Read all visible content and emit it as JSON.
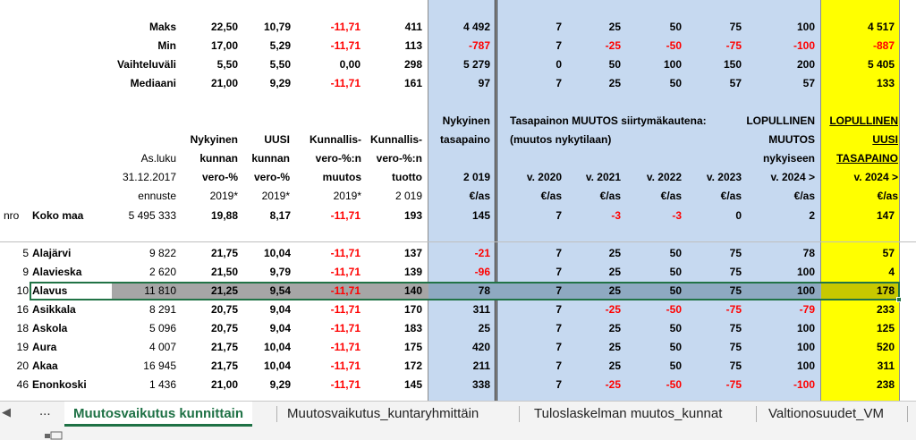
{
  "stats": [
    {
      "label": "Maks",
      "c1": "22,50",
      "c2": "10,79",
      "c3": "-11,71",
      "c4": "411",
      "c5": "4 492",
      "v2020": "7",
      "v2021": "25",
      "v2022": "50",
      "v2023": "75",
      "v2024": "100",
      "fin": "4 517"
    },
    {
      "label": "Min",
      "c1": "17,00",
      "c2": "5,29",
      "c3": "-11,71",
      "c4": "113",
      "c5": "-787",
      "v2020": "7",
      "v2021": "-25",
      "v2022": "-50",
      "v2023": "-75",
      "v2024": "-100",
      "fin": "-887"
    },
    {
      "label": "Vaihteluväli",
      "c1": "5,50",
      "c2": "5,50",
      "c3": "0,00",
      "c4": "298",
      "c5": "5 279",
      "v2020": "0",
      "v2021": "50",
      "v2022": "100",
      "v2023": "150",
      "v2024": "200",
      "fin": "5 405"
    },
    {
      "label": "Mediaani",
      "c1": "21,00",
      "c2": "9,29",
      "c3": "-11,71",
      "c4": "161",
      "c5": "97",
      "v2020": "7",
      "v2021": "25",
      "v2022": "50",
      "v2023": "57",
      "v2024": "57",
      "fin": "133"
    }
  ],
  "headers": {
    "nykyinen_tasapaino": [
      "Nykyinen",
      "tasapaino",
      "2 019",
      "€/as"
    ],
    "tasapainon_muutos": "Tasapainon MUUTOS siirtymäkautena:",
    "muutos_nykytilaan": "(muutos nykytilaan)",
    "lopullinen_muutos": [
      "LOPULLINEN",
      "MUUTOS",
      "nykyiseen"
    ],
    "lopullinen_uusi": [
      "LOPULLINEN",
      "UUSI",
      "TASAPAINO",
      "v. 2024 >",
      "€/as"
    ],
    "asluku": [
      "As.luku",
      "31.12.2017",
      "ennuste"
    ],
    "nykyinen_kunnan": [
      "Nykyinen",
      "kunnan",
      "vero-%",
      "2019*"
    ],
    "uusi_kunnan": [
      "UUSI",
      "kunnan",
      "vero-%",
      "2019*"
    ],
    "kunnallis_muutos": [
      "Kunnallis-",
      "vero-%:n",
      "muutos",
      "2019*"
    ],
    "kunnallis_tuotto": [
      "Kunnallis-",
      "vero-%:n",
      "tuotto",
      "2 019"
    ],
    "years": [
      "v. 2020",
      "v. 2021",
      "v. 2022",
      "v. 2023",
      "v. 2024 >"
    ],
    "unit": "€/as",
    "nro": "nro"
  },
  "koko_maa": {
    "name": "Koko maa",
    "asluku": "5 495 333",
    "c1": "19,88",
    "c2": "8,17",
    "c3": "-11,71",
    "c4": "193",
    "c5": "145",
    "v2020": "7",
    "v2021": "-3",
    "v2022": "-3",
    "v2023": "0",
    "v2024": "2",
    "fin": "147"
  },
  "rows": [
    {
      "nro": "5",
      "name": "Alajärvi",
      "asluku": "9 822",
      "c1": "21,75",
      "c2": "10,04",
      "c3": "-11,71",
      "c4": "137",
      "c5": "-21",
      "v2020": "7",
      "v2021": "25",
      "v2022": "50",
      "v2023": "75",
      "v2024": "78",
      "fin": "57"
    },
    {
      "nro": "9",
      "name": "Alavieska",
      "asluku": "2 620",
      "c1": "21,50",
      "c2": "9,79",
      "c3": "-11,71",
      "c4": "139",
      "c5": "-96",
      "v2020": "7",
      "v2021": "25",
      "v2022": "50",
      "v2023": "75",
      "v2024": "100",
      "fin": "4"
    },
    {
      "nro": "10",
      "name": "Alavus",
      "asluku": "11 810",
      "c1": "21,25",
      "c2": "9,54",
      "c3": "-11,71",
      "c4": "140",
      "c5": "78",
      "v2020": "7",
      "v2021": "25",
      "v2022": "50",
      "v2023": "75",
      "v2024": "100",
      "fin": "178"
    },
    {
      "nro": "16",
      "name": "Asikkala",
      "asluku": "8 291",
      "c1": "20,75",
      "c2": "9,04",
      "c3": "-11,71",
      "c4": "170",
      "c5": "311",
      "v2020": "7",
      "v2021": "-25",
      "v2022": "-50",
      "v2023": "-75",
      "v2024": "-79",
      "fin": "233"
    },
    {
      "nro": "18",
      "name": "Askola",
      "asluku": "5 096",
      "c1": "20,75",
      "c2": "9,04",
      "c3": "-11,71",
      "c4": "183",
      "c5": "25",
      "v2020": "7",
      "v2021": "25",
      "v2022": "50",
      "v2023": "75",
      "v2024": "100",
      "fin": "125"
    },
    {
      "nro": "19",
      "name": "Aura",
      "asluku": "4 007",
      "c1": "21,75",
      "c2": "10,04",
      "c3": "-11,71",
      "c4": "175",
      "c5": "420",
      "v2020": "7",
      "v2021": "25",
      "v2022": "50",
      "v2023": "75",
      "v2024": "100",
      "fin": "520"
    },
    {
      "nro": "20",
      "name": "Akaa",
      "asluku": "16 945",
      "c1": "21,75",
      "c2": "10,04",
      "c3": "-11,71",
      "c4": "172",
      "c5": "211",
      "v2020": "7",
      "v2021": "25",
      "v2022": "50",
      "v2023": "75",
      "v2024": "100",
      "fin": "311"
    },
    {
      "nro": "46",
      "name": "Enonkoski",
      "asluku": "1 436",
      "c1": "21,00",
      "c2": "9,29",
      "c3": "-11,71",
      "c4": "145",
      "c5": "338",
      "v2020": "7",
      "v2021": "-25",
      "v2022": "-50",
      "v2023": "-75",
      "v2024": "-100",
      "fin": "238"
    }
  ],
  "tabs": [
    "Muutosvaikutus kunnittain",
    "Muutosvaikutus_kuntaryhmittäin",
    "Tuloslaskelman muutos_kunnat",
    "Valtionosuudet_VM"
  ],
  "nav": {
    "left_arrow": "◀",
    "dots": "..."
  },
  "colors": {
    "blue_band": "#c6d9f0",
    "yellow_band": "#ffff00",
    "negative": "#ff0000",
    "active_tab": "#1e7145"
  }
}
